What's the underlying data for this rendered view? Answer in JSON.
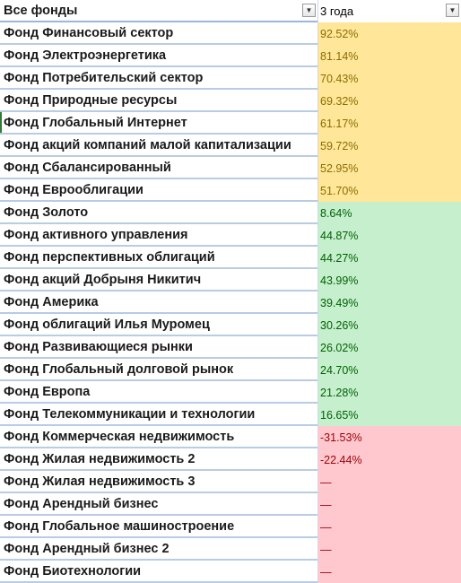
{
  "header": {
    "col_a": "Все фонды",
    "col_b": "3 года"
  },
  "colors": {
    "yellow": "#ffe699",
    "yellow_text": "#8a6d00",
    "green": "#c6efce",
    "green_text": "#006100",
    "red": "#ffc7ce",
    "red_text": "#9c0006"
  },
  "rows": [
    {
      "name": "Фонд Финансовый сектор",
      "value": "92.52%",
      "group": "yellow"
    },
    {
      "name": "Фонд Электроэнергетика",
      "value": "81.14%",
      "group": "yellow"
    },
    {
      "name": "Фонд Потребительский сектор",
      "value": "70.43%",
      "group": "yellow"
    },
    {
      "name": "Фонд Природные ресурсы",
      "value": "69.32%",
      "group": "yellow"
    },
    {
      "name": "Фонд Глобальный Интернет",
      "value": "61.17%",
      "group": "yellow"
    },
    {
      "name": "Фонд акций компаний малой капитализации",
      "value": "59.72%",
      "group": "yellow"
    },
    {
      "name": "Фонд Сбалансированный",
      "value": "52.95%",
      "group": "yellow"
    },
    {
      "name": "Фонд Еврооблигации",
      "value": "51.70%",
      "group": "yellow"
    },
    {
      "name": "Фонд Золото",
      "value": "8.64%",
      "group": "green"
    },
    {
      "name": "Фонд активного управления",
      "value": "44.87%",
      "group": "green"
    },
    {
      "name": "Фонд перспективных облигаций",
      "value": "44.27%",
      "group": "green"
    },
    {
      "name": "Фонд акций Добрыня Никитич",
      "value": "43.99%",
      "group": "green"
    },
    {
      "name": "Фонд Америка",
      "value": "39.49%",
      "group": "green"
    },
    {
      "name": "Фонд облигаций Илья Муромец",
      "value": "30.26%",
      "group": "green"
    },
    {
      "name": "Фонд Развивающиеся рынки",
      "value": "26.02%",
      "group": "green"
    },
    {
      "name": "Фонд Глобальный долговой рынок",
      "value": "24.70%",
      "group": "green"
    },
    {
      "name": "Фонд Европа",
      "value": "21.28%",
      "group": "green"
    },
    {
      "name": "Фонд Телекоммуникации и технологии",
      "value": "16.65%",
      "group": "green"
    },
    {
      "name": "Фонд Коммерческая недвижимость",
      "value": "-31.53%",
      "group": "red"
    },
    {
      "name": "Фонд Жилая недвижимость 2",
      "value": "-22.44%",
      "group": "red"
    },
    {
      "name": "Фонд Жилая недвижимость 3",
      "value": "—",
      "group": "red"
    },
    {
      "name": "Фонд Арендный бизнес",
      "value": "—",
      "group": "red"
    },
    {
      "name": "Фонд Глобальное машиностроение",
      "value": "—",
      "group": "red"
    },
    {
      "name": "Фонд Арендный бизнес 2",
      "value": "—",
      "group": "red"
    },
    {
      "name": "Фонд Биотехнологии",
      "value": "—",
      "group": "red"
    }
  ]
}
